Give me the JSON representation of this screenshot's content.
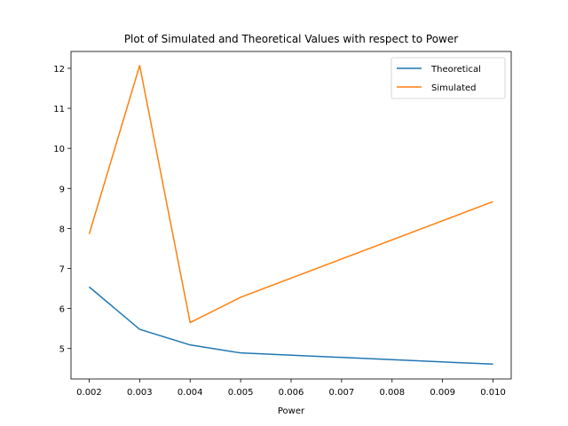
{
  "chart_data": {
    "type": "line",
    "title": "Plot of Simulated and Theoretical Values with respect to Power",
    "xlabel": "Power",
    "ylabel": "",
    "x": [
      0.002,
      0.003,
      0.004,
      0.005,
      0.01
    ],
    "x_ticks": [
      "0.002",
      "0.003",
      "0.004",
      "0.005",
      "0.006",
      "0.007",
      "0.008",
      "0.009",
      "0.010"
    ],
    "y_ticks": [
      "5",
      "6",
      "7",
      "8",
      "9",
      "10",
      "11",
      "12"
    ],
    "xlim": [
      0.00164,
      0.01036
    ],
    "ylim": [
      4.24,
      12.42
    ],
    "grid": false,
    "legend_position": "top-right",
    "series": [
      {
        "name": "Theoretical",
        "color": "#1f77b4",
        "values": [
          6.54,
          5.48,
          5.09,
          4.89,
          4.61
        ]
      },
      {
        "name": "Simulated",
        "color": "#ff7f0e",
        "values": [
          7.86,
          12.07,
          5.65,
          6.28,
          8.67
        ]
      }
    ]
  }
}
